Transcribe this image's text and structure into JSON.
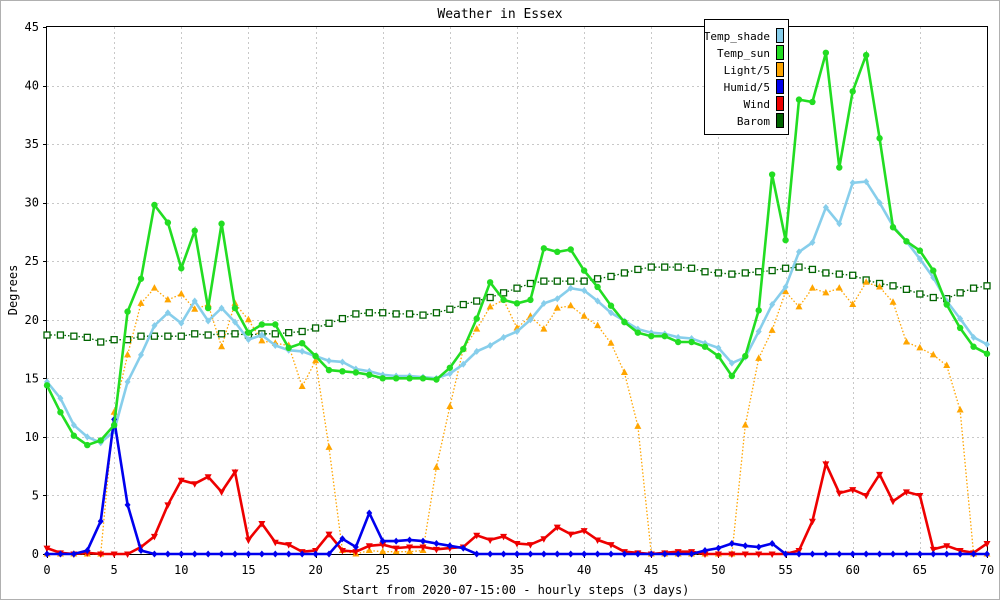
{
  "chart_data": {
    "type": "line",
    "title": "Weather in Essex",
    "xlabel": "Start from 2020-07-15:00 - hourly steps (3 days)",
    "ylabel": "Degrees",
    "xlim": [
      0,
      70
    ],
    "ylim": [
      0,
      45
    ],
    "xticks": [
      0,
      5,
      10,
      15,
      20,
      25,
      30,
      35,
      40,
      45,
      50,
      55,
      60,
      65,
      70
    ],
    "yticks": [
      0,
      5,
      10,
      15,
      20,
      25,
      30,
      35,
      40,
      45
    ],
    "grid": true,
    "legend_position": "top-right",
    "series": [
      {
        "name": "Temp_shade",
        "color": "#87ceeb",
        "marker": "diamond",
        "line": "solid",
        "x": [
          0,
          1,
          2,
          3,
          4,
          5,
          6,
          7,
          8,
          9,
          10,
          11,
          12,
          13,
          14,
          15,
          16,
          17,
          18,
          19,
          20,
          21,
          22,
          23,
          24,
          25,
          26,
          27,
          28,
          29,
          30,
          31,
          32,
          33,
          34,
          35,
          36,
          37,
          38,
          39,
          40,
          41,
          42,
          43,
          44,
          45,
          46,
          47,
          48,
          49,
          50,
          51,
          52,
          53,
          54,
          55,
          56,
          57,
          58,
          59,
          60,
          61,
          62,
          63,
          64,
          65,
          66,
          67,
          68,
          69,
          70
        ],
        "y": [
          14.7,
          13.3,
          11.0,
          10.0,
          9.5,
          10.5,
          14.7,
          17.0,
          19.5,
          20.6,
          19.7,
          21.6,
          19.9,
          21.0,
          19.8,
          18.3,
          18.7,
          17.8,
          17.4,
          17.3,
          16.9,
          16.5,
          16.4,
          15.8,
          15.6,
          15.3,
          15.2,
          15.2,
          15.1,
          15.0,
          15.4,
          16.2,
          17.3,
          17.8,
          18.5,
          19.0,
          20.0,
          21.4,
          21.8,
          22.7,
          22.5,
          21.6,
          20.6,
          19.9,
          19.2,
          18.9,
          18.8,
          18.5,
          18.4,
          18.0,
          17.6,
          16.3,
          16.8,
          19.0,
          21.3,
          22.8,
          25.8,
          26.6,
          29.6,
          28.2,
          31.7,
          31.8,
          30.0,
          28.0,
          26.7,
          25.2,
          23.6,
          21.6,
          20.1,
          18.5,
          17.9
        ]
      },
      {
        "name": "Temp_sun",
        "color": "#22dd22",
        "marker": "circle",
        "line": "solid",
        "x": [
          0,
          1,
          2,
          3,
          4,
          5,
          6,
          7,
          8,
          9,
          10,
          11,
          12,
          13,
          14,
          15,
          16,
          17,
          18,
          19,
          20,
          21,
          22,
          23,
          24,
          25,
          26,
          27,
          28,
          29,
          30,
          31,
          32,
          33,
          34,
          35,
          36,
          37,
          38,
          39,
          40,
          41,
          42,
          43,
          44,
          45,
          46,
          47,
          48,
          49,
          50,
          51,
          52,
          53,
          54,
          55,
          56,
          57,
          58,
          59,
          60,
          61,
          62,
          63,
          64,
          65,
          66,
          67,
          68,
          69,
          70
        ],
        "y": [
          14.4,
          12.1,
          10.1,
          9.3,
          9.7,
          11.0,
          20.7,
          23.5,
          29.8,
          28.3,
          24.4,
          27.6,
          21.0,
          28.2,
          21.0,
          18.9,
          19.6,
          19.6,
          17.6,
          18.0,
          16.9,
          15.7,
          15.6,
          15.5,
          15.3,
          15.0,
          15.0,
          15.0,
          15.0,
          14.9,
          15.9,
          17.5,
          20.1,
          23.2,
          21.7,
          21.4,
          21.7,
          26.1,
          25.8,
          26.0,
          24.2,
          22.8,
          21.2,
          19.8,
          18.9,
          18.6,
          18.6,
          18.1,
          18.1,
          17.7,
          16.9,
          15.2,
          16.9,
          20.8,
          32.4,
          26.8,
          38.8,
          38.6,
          42.8,
          33.0,
          39.5,
          42.6,
          35.5,
          27.9,
          26.7,
          25.9,
          24.2,
          21.3,
          19.3,
          17.7,
          17.1
        ]
      },
      {
        "name": "Light/5",
        "color": "#ffa500",
        "marker": "triangle",
        "line": "dotted",
        "x": [
          0,
          1,
          2,
          3,
          4,
          5,
          6,
          7,
          8,
          9,
          10,
          11,
          12,
          13,
          14,
          15,
          16,
          17,
          18,
          19,
          20,
          21,
          22,
          23,
          24,
          25,
          26,
          27,
          28,
          29,
          30,
          31,
          32,
          33,
          34,
          35,
          36,
          37,
          38,
          39,
          40,
          41,
          42,
          43,
          44,
          45,
          46,
          47,
          48,
          49,
          50,
          51,
          52,
          53,
          54,
          55,
          56,
          57,
          58,
          59,
          60,
          61,
          62,
          63,
          64,
          65,
          66,
          67,
          68,
          69,
          70
        ],
        "y": [
          0,
          0,
          0,
          0,
          0,
          12.1,
          17.0,
          21.4,
          22.7,
          21.7,
          22.2,
          20.9,
          21.3,
          17.7,
          21.4,
          20.0,
          18.2,
          18.0,
          17.8,
          14.3,
          16.5,
          9.1,
          0.3,
          0,
          0.3,
          0.2,
          0.2,
          0.2,
          0.3,
          7.4,
          12.6,
          17.5,
          19.2,
          21.1,
          21.7,
          19.3,
          20.3,
          19.2,
          21.0,
          21.2,
          20.3,
          19.5,
          18.0,
          15.5,
          10.9,
          0,
          0,
          0,
          0,
          0,
          0,
          0,
          11.0,
          16.7,
          19.1,
          22.4,
          21.1,
          22.7,
          22.3,
          22.7,
          21.3,
          23.2,
          22.8,
          21.5,
          18.1,
          17.6,
          17.0,
          16.1,
          12.3,
          0,
          0
        ]
      },
      {
        "name": "Humid/5",
        "color": "#0000ee",
        "marker": "diamond",
        "line": "solid",
        "x": [
          0,
          1,
          2,
          3,
          4,
          5,
          6,
          7,
          8,
          9,
          10,
          11,
          12,
          13,
          14,
          15,
          16,
          17,
          18,
          19,
          20,
          21,
          22,
          23,
          24,
          25,
          26,
          27,
          28,
          29,
          30,
          31,
          32,
          33,
          34,
          35,
          36,
          37,
          38,
          39,
          40,
          41,
          42,
          43,
          44,
          45,
          46,
          47,
          48,
          49,
          50,
          51,
          52,
          53,
          54,
          55,
          56,
          57,
          58,
          59,
          60,
          61,
          62,
          63,
          64,
          65,
          66,
          67,
          68,
          69,
          70
        ],
        "y": [
          0,
          0,
          0,
          0.3,
          2.8,
          11.5,
          4.2,
          0.3,
          0,
          0,
          0,
          0,
          0,
          0,
          0,
          0,
          0,
          0,
          0,
          0,
          0,
          0,
          1.3,
          0.6,
          3.5,
          1.1,
          1.1,
          1.2,
          1.1,
          0.9,
          0.7,
          0.5,
          0,
          0,
          0,
          0,
          0,
          0,
          0,
          0,
          0,
          0,
          0,
          0,
          0,
          0,
          0,
          0,
          0,
          0.3,
          0.5,
          0.9,
          0.7,
          0.6,
          0.9,
          0,
          0,
          0,
          0,
          0,
          0,
          0,
          0,
          0,
          0,
          0,
          0,
          0,
          0,
          0,
          0
        ]
      },
      {
        "name": "Wind",
        "color": "#ee0000",
        "marker": "inverted-triangle",
        "line": "solid",
        "x": [
          0,
          1,
          2,
          3,
          4,
          5,
          6,
          7,
          8,
          9,
          10,
          11,
          12,
          13,
          14,
          15,
          16,
          17,
          18,
          19,
          20,
          21,
          22,
          23,
          24,
          25,
          26,
          27,
          28,
          29,
          30,
          31,
          32,
          33,
          34,
          35,
          36,
          37,
          38,
          39,
          40,
          41,
          42,
          43,
          44,
          45,
          46,
          47,
          48,
          49,
          50,
          51,
          52,
          53,
          54,
          55,
          56,
          57,
          58,
          59,
          60,
          61,
          62,
          63,
          64,
          65,
          66,
          67,
          68,
          69,
          70
        ],
        "y": [
          0.5,
          0.1,
          0,
          0.1,
          0,
          0,
          0,
          0.6,
          1.5,
          4.2,
          6.3,
          6.0,
          6.6,
          5.3,
          7.0,
          1.2,
          2.6,
          1.0,
          0.8,
          0.2,
          0.3,
          1.7,
          0.3,
          0.2,
          0.7,
          0.8,
          0.5,
          0.6,
          0.6,
          0.4,
          0.5,
          0.6,
          1.6,
          1.2,
          1.5,
          0.9,
          0.8,
          1.3,
          2.3,
          1.7,
          2.0,
          1.2,
          0.8,
          0.2,
          0.1,
          0,
          0.1,
          0.2,
          0.2,
          0,
          0,
          0,
          0,
          0,
          0,
          0,
          0.3,
          2.8,
          7.7,
          5.2,
          5.5,
          5.0,
          6.8,
          4.5,
          5.3,
          5.0,
          0.4,
          0.7,
          0.3,
          0.1,
          0.9
        ]
      },
      {
        "name": "Barom",
        "color": "#006400",
        "marker": "square",
        "line": "dotted",
        "x": [
          0,
          1,
          2,
          3,
          4,
          5,
          6,
          7,
          8,
          9,
          10,
          11,
          12,
          13,
          14,
          15,
          16,
          17,
          18,
          19,
          20,
          21,
          22,
          23,
          24,
          25,
          26,
          27,
          28,
          29,
          30,
          31,
          32,
          33,
          34,
          35,
          36,
          37,
          38,
          39,
          40,
          41,
          42,
          43,
          44,
          45,
          46,
          47,
          48,
          49,
          50,
          51,
          52,
          53,
          54,
          55,
          56,
          57,
          58,
          59,
          60,
          61,
          62,
          63,
          64,
          65,
          66,
          67,
          68,
          69,
          70
        ],
        "y": [
          18.7,
          18.7,
          18.6,
          18.5,
          18.1,
          18.3,
          18.3,
          18.6,
          18.6,
          18.6,
          18.6,
          18.8,
          18.7,
          18.8,
          18.8,
          18.7,
          18.8,
          18.8,
          18.9,
          19.0,
          19.3,
          19.7,
          20.1,
          20.5,
          20.6,
          20.6,
          20.5,
          20.5,
          20.4,
          20.6,
          20.9,
          21.3,
          21.6,
          21.9,
          22.3,
          22.7,
          23.1,
          23.3,
          23.3,
          23.3,
          23.3,
          23.5,
          23.7,
          24.0,
          24.3,
          24.5,
          24.5,
          24.5,
          24.4,
          24.1,
          24.0,
          23.9,
          24.0,
          24.1,
          24.2,
          24.4,
          24.5,
          24.3,
          24.0,
          23.9,
          23.8,
          23.4,
          23.1,
          22.9,
          22.6,
          22.2,
          21.9,
          21.8,
          22.3,
          22.7,
          22.9
        ]
      }
    ]
  }
}
